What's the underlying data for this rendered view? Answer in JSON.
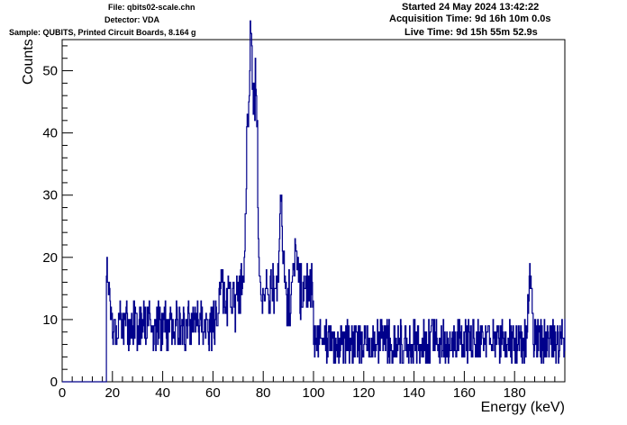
{
  "header": {
    "file": "File: qbits02-scale.chn",
    "detector": "Detector: VDA",
    "sample": "Sample: QUBITS, Printed Circuit Boards, 8.164 g",
    "started": "Started 24 May 2024 13:42:22",
    "acquisition": "Acquisition Time: 9d 16h 10m 0.0s",
    "live": "Live Time: 9d 15h 55m 52.9s"
  },
  "chart_data": {
    "type": "line",
    "style": "histogram-step",
    "title": "",
    "xlabel": "Energy (keV)",
    "ylabel": "Counts",
    "xlim": [
      0,
      200
    ],
    "ylim": [
      0,
      55
    ],
    "xticks": [
      "0",
      "20",
      "40",
      "60",
      "80",
      "100",
      "120",
      "140",
      "160",
      "180"
    ],
    "yticks": [
      "0",
      "10",
      "20",
      "30",
      "40",
      "50"
    ],
    "line_color": "#00008b",
    "bin_width_keV": 0.2,
    "background": {
      "low_mean": 9,
      "low_spread": 4,
      "high_mean": 6.5,
      "high_spread": 3.5
    },
    "peaks": [
      {
        "energy": 18.1,
        "counts": 18
      },
      {
        "energy": 73.5,
        "counts": 28
      },
      {
        "energy": 75.0,
        "counts": 51
      },
      {
        "energy": 77.0,
        "counts": 39
      },
      {
        "energy": 87.0,
        "counts": 24
      },
      {
        "energy": 93.0,
        "counts": 19
      },
      {
        "energy": 186.0,
        "counts": 17
      }
    ]
  }
}
